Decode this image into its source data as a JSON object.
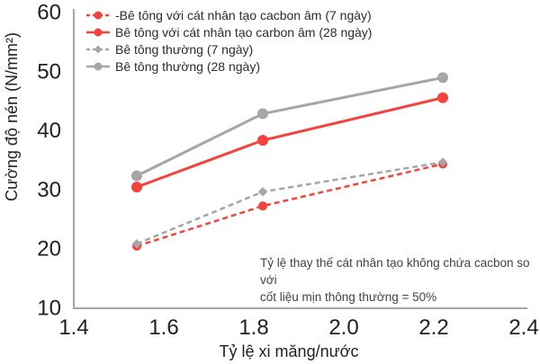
{
  "chart_data": {
    "type": "line",
    "title": "",
    "xlabel": "Tỷ lệ xi măng/nước",
    "ylabel": "Cường độ nén (N/mm²)",
    "xlim": [
      1.4,
      2.4
    ],
    "ylim": [
      10,
      60
    ],
    "x_ticks": [
      1.4,
      1.6,
      1.8,
      2.0,
      2.2,
      2.4
    ],
    "y_ticks": [
      10,
      20,
      30,
      40,
      50,
      60
    ],
    "grid": false,
    "legend_position": "top-left-inside",
    "x": [
      1.54,
      1.82,
      2.22
    ],
    "series": [
      {
        "name": "-Bê tông với cát nhân tạo cacbon âm (7 ngày)",
        "values": [
          20.5,
          27.3,
          34.4
        ],
        "color": "#f4433c",
        "style": "dashed",
        "marker": "circle"
      },
      {
        "name": "Bê tông với cát nhân tạo carbon âm (28 ngày)",
        "values": [
          30.5,
          38.4,
          45.6
        ],
        "color": "#f4433c",
        "style": "solid",
        "marker": "circle"
      },
      {
        "name": "Bê tông thường (7 ngày)",
        "values": [
          20.9,
          29.7,
          34.7
        ],
        "color": "#a6a6a6",
        "style": "dashed",
        "marker": "diamond"
      },
      {
        "name": "Bê tông thường (28 ngày)",
        "values": [
          32.4,
          42.9,
          49.0
        ],
        "color": "#a6a6a6",
        "style": "solid",
        "marker": "circle"
      }
    ],
    "draw_order": [
      0,
      2,
      1,
      3
    ],
    "annotation": {
      "line1": "Tỷ lệ thay thế cát nhân tạo không chứa cacbon so với",
      "line2": "cốt liệu mịn thông thường = 50%"
    },
    "axis_color": "#a6a6a6",
    "text_color": "#212121"
  }
}
